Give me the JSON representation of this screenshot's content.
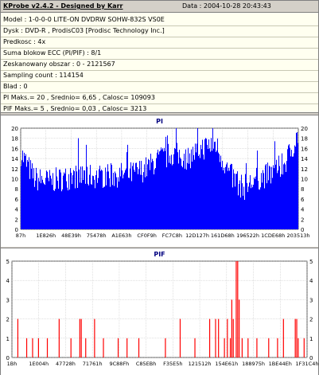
{
  "header": {
    "title": "KProbe v2.4.2 - Designed by Karr",
    "date": "Data : 2004-10-28 20:43:43"
  },
  "info": {
    "model": "Model : 1-0-0-0 LITE-ON DVDRW SOHW-832S  VS0E",
    "disc": "Dysk : DVD-R , ProdisC03   [Prodisc Technology Inc.]",
    "speed": "Predkosc : 4x",
    "ecc": "Suma blokow ECC (PI/PIF) : 8/1",
    "scanned": "Zeskanowany obszar : 0 - 2121567",
    "sampling": "Sampling count : 114154",
    "error": "Blad : 0",
    "pi_stats": "PI Maks.= 20 , Srednio= 6,65 , Calosc= 109093",
    "pif_stats": "PIF Maks.= 5 , Srednio= 0,03 , Calosc= 3213"
  },
  "colors": {
    "series": "#0000ff",
    "pif_series": "#ff0000",
    "grid": "#c0c0c0"
  },
  "chart_data": [
    {
      "type": "bar",
      "title": "PI",
      "ylim": [
        0,
        20
      ],
      "yticks": [
        0,
        2,
        4,
        6,
        8,
        10,
        12,
        14,
        16,
        18,
        20
      ],
      "xticklabels": [
        "87h",
        "1E826h",
        "48E39h",
        "75478h",
        "A1E63h",
        "CF0F9h",
        "FC7C8h",
        "12D127h",
        "161D68h",
        "196522h",
        "1CDE68h",
        "203513h"
      ],
      "series_profile": {
        "x": [
          0,
          0.05,
          0.1,
          0.2,
          0.3,
          0.4,
          0.45,
          0.5,
          0.55,
          0.6,
          0.65,
          0.7,
          0.75,
          0.8,
          0.85,
          0.9,
          0.95,
          1.0
        ],
        "y": [
          15,
          10,
          9.5,
          10.5,
          10.5,
          11,
          12,
          14,
          15,
          14,
          16,
          17,
          11,
          8,
          10,
          11,
          13,
          19
        ]
      }
    },
    {
      "type": "bar",
      "title": "PIF",
      "ylim": [
        0,
        5
      ],
      "yticks": [
        0,
        1,
        2,
        3,
        4,
        5
      ],
      "xticklabels": [
        "1Bh",
        "1E004h",
        "47728h",
        "71761h",
        "9C88Fh",
        "C85EBh",
        "F35E5h",
        "121512h",
        "154E61h",
        "188975h",
        "1BE44Eh",
        "1F31C4h"
      ],
      "spikes": [
        {
          "x": 0.02,
          "y": 2
        },
        {
          "x": 0.05,
          "y": 1
        },
        {
          "x": 0.07,
          "y": 1
        },
        {
          "x": 0.09,
          "y": 1
        },
        {
          "x": 0.12,
          "y": 1
        },
        {
          "x": 0.16,
          "y": 2
        },
        {
          "x": 0.2,
          "y": 1
        },
        {
          "x": 0.23,
          "y": 2
        },
        {
          "x": 0.235,
          "y": 2
        },
        {
          "x": 0.25,
          "y": 1
        },
        {
          "x": 0.28,
          "y": 2
        },
        {
          "x": 0.31,
          "y": 1
        },
        {
          "x": 0.36,
          "y": 1
        },
        {
          "x": 0.39,
          "y": 1
        },
        {
          "x": 0.43,
          "y": 1
        },
        {
          "x": 0.52,
          "y": 1
        },
        {
          "x": 0.57,
          "y": 2
        },
        {
          "x": 0.62,
          "y": 1
        },
        {
          "x": 0.67,
          "y": 2
        },
        {
          "x": 0.69,
          "y": 2
        },
        {
          "x": 0.7,
          "y": 2
        },
        {
          "x": 0.72,
          "y": 1
        },
        {
          "x": 0.73,
          "y": 2
        },
        {
          "x": 0.74,
          "y": 1
        },
        {
          "x": 0.745,
          "y": 3
        },
        {
          "x": 0.75,
          "y": 2
        },
        {
          "x": 0.76,
          "y": 5
        },
        {
          "x": 0.765,
          "y": 5
        },
        {
          "x": 0.77,
          "y": 3
        },
        {
          "x": 0.78,
          "y": 1
        },
        {
          "x": 0.8,
          "y": 1
        },
        {
          "x": 0.83,
          "y": 1
        },
        {
          "x": 0.87,
          "y": 1
        },
        {
          "x": 0.9,
          "y": 1
        },
        {
          "x": 0.92,
          "y": 2
        },
        {
          "x": 0.96,
          "y": 2
        },
        {
          "x": 0.965,
          "y": 2
        },
        {
          "x": 0.97,
          "y": 1
        },
        {
          "x": 0.99,
          "y": 1
        }
      ]
    }
  ]
}
